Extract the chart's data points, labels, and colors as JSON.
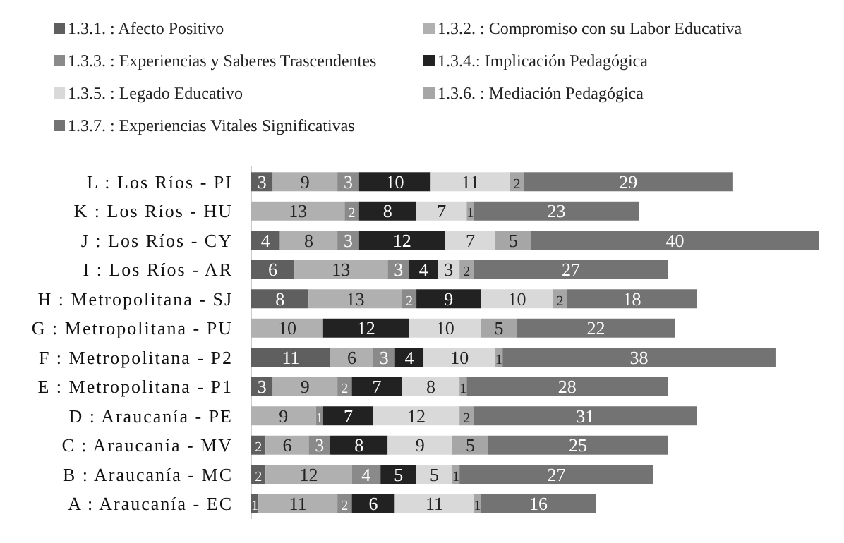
{
  "chart_data": {
    "type": "bar",
    "orientation": "horizontal",
    "stacked": true,
    "legend": "top",
    "categories": [
      "L : Los Ríos - PI",
      "K : Los Ríos - HU",
      "J : Los Ríos - CY",
      "I : Los Ríos - AR",
      "H : Metropolitana - SJ",
      "G : Metropolitana - PU",
      "F : Metropolitana - P2",
      "E : Metropolitana - P1",
      "D : Araucanía - PE",
      "C : Araucanía - MV",
      "B : Araucanía - MC",
      "A : Araucanía - EC"
    ],
    "series": [
      {
        "name": "1.3.1. : Afecto Positivo",
        "color": "#5f5f5f",
        "values": [
          3,
          0,
          4,
          6,
          8,
          0,
          11,
          3,
          0,
          2,
          2,
          1
        ],
        "value_labels": [
          "3",
          null,
          "4",
          "6",
          "8",
          null,
          "11",
          "3",
          null,
          "2",
          "2",
          "1"
        ]
      },
      {
        "name": "1.3.2. : Compromiso con su Labor Educativa",
        "color": "#b0b0b0",
        "values": [
          9,
          13,
          8,
          13,
          13,
          10,
          6,
          9,
          9,
          6,
          12,
          11
        ],
        "value_labels": [
          "9",
          "13",
          "8",
          "13",
          "13",
          "10",
          "6",
          "9",
          "9",
          "6",
          "12",
          "11"
        ]
      },
      {
        "name": "1.3.3. : Experiencias y Saberes Trascendentes",
        "color": "#8a8a8a",
        "values": [
          3,
          2,
          3,
          3,
          2,
          0,
          3,
          2,
          1,
          3,
          4,
          2
        ],
        "value_labels": [
          "3",
          "2",
          "3",
          "3",
          "2",
          null,
          "3",
          "2",
          "1",
          "3",
          "4",
          "2"
        ]
      },
      {
        "name": "1.3.4.: Implicación Pedagógica",
        "color": "#222222",
        "values": [
          10,
          8,
          12,
          4,
          9,
          12,
          4,
          7,
          7,
          8,
          5,
          6
        ],
        "value_labels": [
          "10",
          "8",
          "12",
          "4",
          "9",
          "12",
          "4",
          "7",
          "7",
          "8",
          "5",
          "6"
        ]
      },
      {
        "name": "1.3.5. : Legado Educativo",
        "color": "#d9d9d9",
        "values": [
          11,
          7,
          7,
          3,
          10,
          10,
          10,
          8,
          12,
          9,
          5,
          11
        ],
        "value_labels": [
          "11",
          "7",
          "7",
          "3",
          "10",
          "10",
          "10",
          "8",
          "12",
          "9",
          "5",
          "11"
        ]
      },
      {
        "name": "1.3.6. : Mediación Pedagógica",
        "color": "#a6a6a6",
        "values": [
          2,
          1,
          5,
          2,
          2,
          5,
          1,
          1,
          2,
          5,
          1,
          1
        ],
        "value_labels": [
          "2",
          "1",
          "5",
          "2",
          "2",
          "5",
          "1",
          "1",
          "2",
          "5",
          "1",
          "1"
        ]
      },
      {
        "name": "1.3.7. : Experiencias Vitales Significativas",
        "color": "#737373",
        "values": [
          29,
          23,
          40,
          27,
          18,
          22,
          38,
          28,
          31,
          25,
          27,
          16
        ],
        "value_labels": [
          "29",
          "23",
          "40",
          "27",
          "18",
          "22",
          "38",
          "28",
          "31",
          "25",
          "27",
          "16"
        ]
      }
    ]
  }
}
